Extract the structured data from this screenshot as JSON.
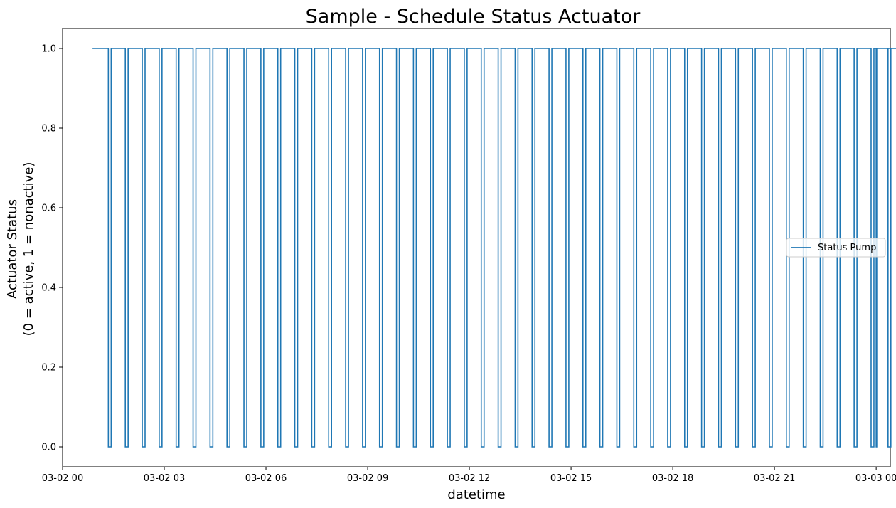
{
  "chart_data": {
    "type": "line",
    "title": "Sample - Schedule Status Actuator",
    "xlabel": "datetime",
    "ylabel_line1": "Actuator Status",
    "ylabel_line2": "(0 = active, 1 = nonactive)",
    "x_tick_labels": [
      "03-02 00",
      "03-02 03",
      "03-02 06",
      "03-02 09",
      "03-02 12",
      "03-02 15",
      "03-02 18",
      "03-02 21",
      "03-03 00"
    ],
    "x_tick_hours": [
      0,
      3,
      6,
      9,
      12,
      15,
      18,
      21,
      24
    ],
    "y_tick_labels": [
      "0.0",
      "0.2",
      "0.4",
      "0.6",
      "0.8",
      "1.0"
    ],
    "y_tick_values": [
      0,
      0.2,
      0.4,
      0.6,
      0.8,
      1.0
    ],
    "x_range": [
      "2024-03-02 00:00",
      "2024-03-03 00:25"
    ],
    "ylim": [
      -0.05,
      1.05
    ],
    "grid": false,
    "legend_position": "center-right",
    "series": [
      {
        "name": "Status Pump",
        "color": "#1f77b4",
        "shape": "step",
        "x_start": "2024-03-02 00:53",
        "x_end": "2024-03-03 01:00",
        "initial_value": 1,
        "cycle_period_minutes": 30,
        "first_off_minute": 81,
        "off_duration_minutes": 5,
        "cycles": 47,
        "final_drop_minute": 1440,
        "final_rise_minute": 1441
      }
    ]
  }
}
